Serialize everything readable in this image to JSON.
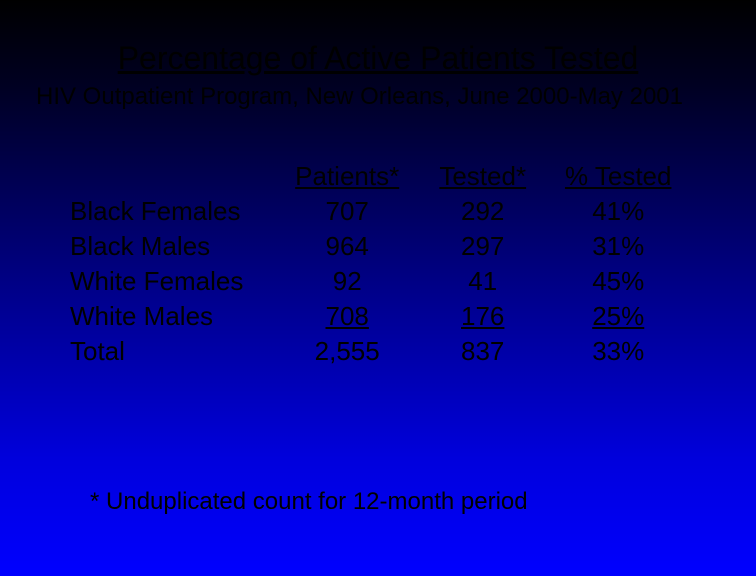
{
  "title": "Percentage of Active Patients Tested",
  "subtitle": "HIV Outpatient Program, New Orleans, June 2000-May 2001",
  "table": {
    "type": "table",
    "columns": [
      "",
      "Patients*",
      "Tested*",
      "% Tested"
    ],
    "rows": [
      {
        "label": "Black Females",
        "patients": "707",
        "tested": "292",
        "pct": "41%",
        "underline": false
      },
      {
        "label": "Black Males",
        "patients": "964",
        "tested": "297",
        "pct": "31%",
        "underline": false
      },
      {
        "label": "White Females",
        "patients": "92",
        "tested": "41",
        "pct": "45%",
        "underline": false
      },
      {
        "label": "White Males",
        "patients": "708",
        "tested": "176",
        "pct": "25%",
        "underline": true
      },
      {
        "label": "Total",
        "patients": "2,555",
        "tested": "837",
        "pct": "33%",
        "underline": false
      }
    ],
    "column_align": [
      "left",
      "center",
      "center",
      "center"
    ],
    "header_underline": true,
    "cell_fontsize": 26,
    "text_color": "#000000"
  },
  "footnote": "* Unduplicated count for 12-month period",
  "style": {
    "background_gradient": [
      "#000000",
      "#000022",
      "#000088",
      "#0000dd",
      "#0000ff"
    ],
    "title_fontsize": 32,
    "subtitle_fontsize": 24,
    "footnote_fontsize": 24,
    "font_family": "Arial"
  }
}
